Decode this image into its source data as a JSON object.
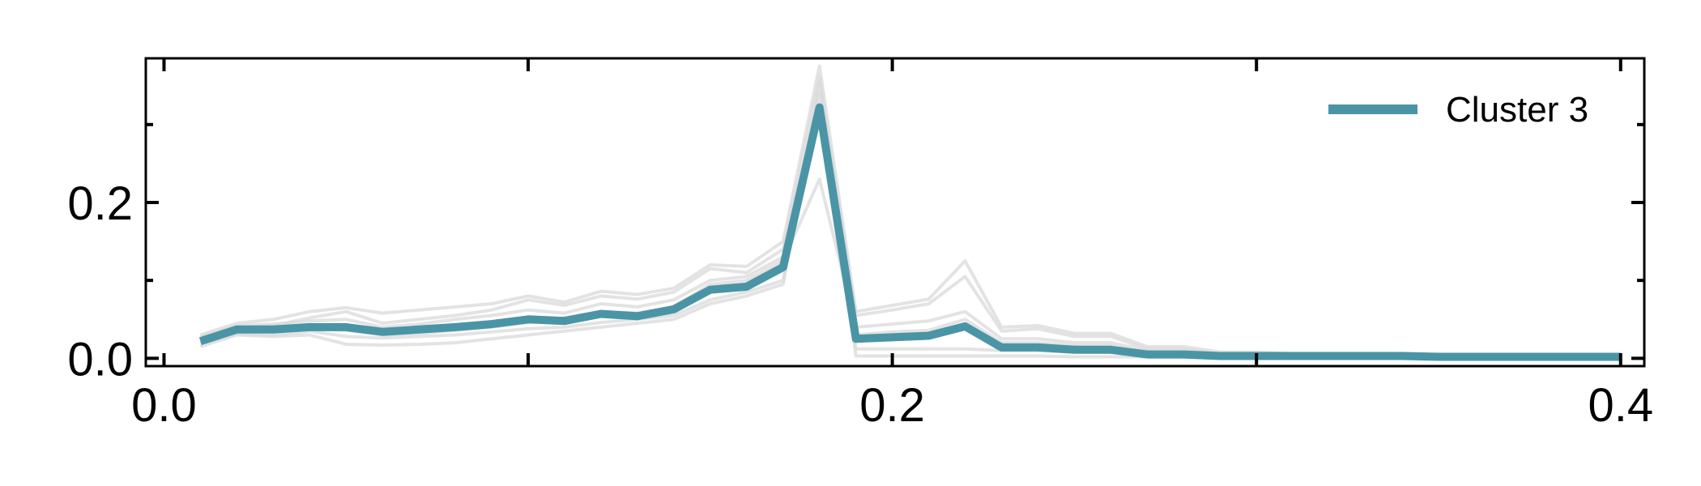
{
  "chart_data": {
    "type": "line",
    "title": "",
    "xlabel": "",
    "ylabel": "",
    "xlim": [
      -0.005,
      0.4065
    ],
    "ylim": [
      -0.01,
      0.385
    ],
    "x_ticks": [
      0.0,
      0.2,
      0.4
    ],
    "x_tick_labels": [
      "0.0",
      "0.2",
      "0.4"
    ],
    "x_minor_ticks": [
      0.1,
      0.3
    ],
    "y_ticks": [
      0.0,
      0.2
    ],
    "y_tick_labels": [
      "0.0",
      "0.2"
    ],
    "y_minor_ticks": [
      0.1,
      0.3
    ],
    "grid": false,
    "legend_position": "top-right",
    "x": [
      0.01,
      0.02,
      0.03,
      0.04,
      0.05,
      0.06,
      0.07,
      0.08,
      0.09,
      0.1,
      0.11,
      0.12,
      0.13,
      0.14,
      0.15,
      0.16,
      0.17,
      0.18,
      0.19,
      0.2,
      0.21,
      0.22,
      0.23,
      0.24,
      0.25,
      0.26,
      0.27,
      0.28,
      0.29,
      0.3,
      0.31,
      0.32,
      0.33,
      0.34,
      0.35,
      0.36,
      0.37,
      0.38,
      0.39,
      0.4
    ],
    "series": [
      {
        "name": "Cluster 3",
        "color": "#4a95a5",
        "values": [
          0.022,
          0.037,
          0.037,
          0.04,
          0.04,
          0.034,
          0.037,
          0.04,
          0.044,
          0.05,
          0.048,
          0.057,
          0.054,
          0.063,
          0.088,
          0.092,
          0.117,
          0.322,
          0.025,
          0.027,
          0.029,
          0.041,
          0.014,
          0.014,
          0.011,
          0.011,
          0.005,
          0.005,
          0.003,
          0.003,
          0.003,
          0.003,
          0.003,
          0.003,
          0.002,
          0.002,
          0.002,
          0.002,
          0.002,
          0.002
        ]
      }
    ],
    "background_series": [
      {
        "color": "#d9d9d9",
        "values": [
          0.03,
          0.045,
          0.05,
          0.06,
          0.065,
          0.058,
          0.062,
          0.066,
          0.07,
          0.08,
          0.072,
          0.086,
          0.082,
          0.09,
          0.12,
          0.118,
          0.15,
          0.375,
          0.06,
          0.068,
          0.076,
          0.125,
          0.04,
          0.042,
          0.032,
          0.032,
          0.015,
          0.015,
          0.008,
          0.008,
          0.006,
          0.006,
          0.005,
          0.005,
          0.004,
          0.004,
          0.003,
          0.003,
          0.003,
          0.003
        ]
      },
      {
        "color": "#d9d9d9",
        "values": [
          0.015,
          0.03,
          0.028,
          0.03,
          0.018,
          0.017,
          0.018,
          0.02,
          0.025,
          0.03,
          0.035,
          0.04,
          0.045,
          0.05,
          0.07,
          0.08,
          0.095,
          0.355,
          0.003,
          0.003,
          0.003,
          0.003,
          0.003,
          0.003,
          0.002,
          0.002,
          0.002,
          0.002,
          0.001,
          0.001,
          0.001,
          0.001,
          0.001,
          0.001,
          0.001,
          0.001,
          0.001,
          0.001,
          0.001,
          0.001
        ]
      },
      {
        "color": "#d9d9d9",
        "values": [
          0.025,
          0.04,
          0.042,
          0.052,
          0.06,
          0.045,
          0.05,
          0.055,
          0.062,
          0.075,
          0.068,
          0.08,
          0.076,
          0.085,
          0.115,
          0.11,
          0.14,
          0.36,
          0.055,
          0.062,
          0.07,
          0.105,
          0.035,
          0.038,
          0.028,
          0.028,
          0.012,
          0.012,
          0.006,
          0.006,
          0.005,
          0.005,
          0.004,
          0.004,
          0.003,
          0.003,
          0.003,
          0.003,
          0.003,
          0.003
        ]
      },
      {
        "color": "#d9d9d9",
        "values": [
          0.018,
          0.032,
          0.03,
          0.035,
          0.028,
          0.026,
          0.028,
          0.03,
          0.034,
          0.038,
          0.04,
          0.046,
          0.05,
          0.055,
          0.075,
          0.085,
          0.1,
          0.34,
          0.012,
          0.012,
          0.012,
          0.012,
          0.01,
          0.01,
          0.008,
          0.008,
          0.005,
          0.005,
          0.003,
          0.003,
          0.003,
          0.003,
          0.002,
          0.002,
          0.002,
          0.002,
          0.002,
          0.002,
          0.002,
          0.002
        ]
      },
      {
        "color": "#d9d9d9",
        "values": [
          0.02,
          0.035,
          0.036,
          0.038,
          0.036,
          0.03,
          0.032,
          0.036,
          0.04,
          0.046,
          0.052,
          0.06,
          0.058,
          0.066,
          0.095,
          0.1,
          0.125,
          0.23,
          0.04,
          0.044,
          0.048,
          0.06,
          0.025,
          0.025,
          0.02,
          0.02,
          0.01,
          0.01,
          0.005,
          0.005,
          0.004,
          0.004,
          0.003,
          0.003,
          0.003,
          0.003,
          0.002,
          0.002,
          0.002,
          0.002
        ]
      },
      {
        "color": "#d9d9d9",
        "values": [
          0.028,
          0.042,
          0.044,
          0.048,
          0.05,
          0.04,
          0.044,
          0.05,
          0.055,
          0.062,
          0.058,
          0.07,
          0.066,
          0.075,
          0.1,
          0.105,
          0.13,
          0.31,
          0.03,
          0.034,
          0.036,
          0.05,
          0.02,
          0.02,
          0.016,
          0.016,
          0.008,
          0.008,
          0.004,
          0.004,
          0.003,
          0.003,
          0.003,
          0.003,
          0.002,
          0.002,
          0.002,
          0.002,
          0.002,
          0.002
        ]
      }
    ]
  }
}
